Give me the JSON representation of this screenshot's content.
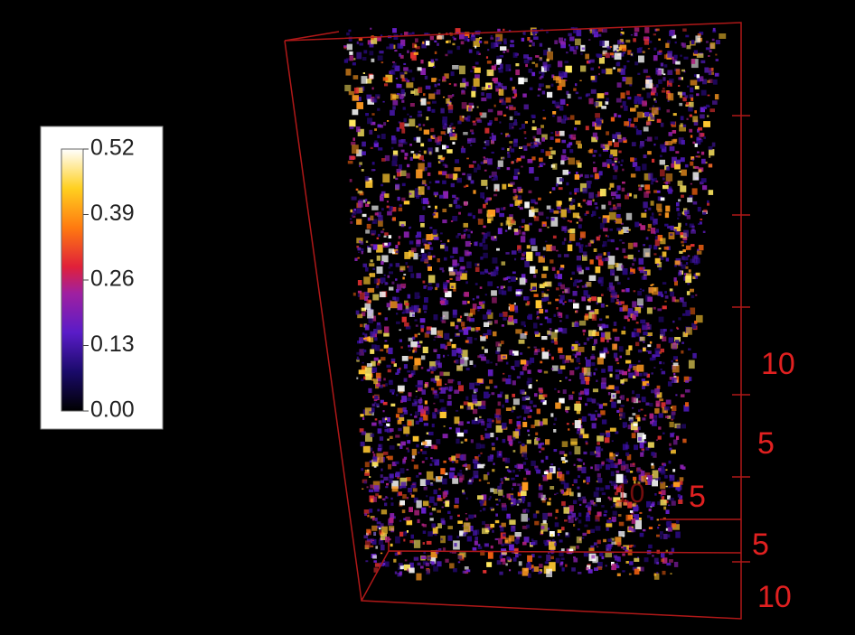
{
  "colorbar": {
    "ticks": [
      "0.52",
      "0.39",
      "0.26",
      "0.13",
      "0.00"
    ]
  },
  "axis_labels": {
    "vertical": [
      "10",
      "5"
    ],
    "depth": [
      "10",
      "5"
    ],
    "bottom": [
      "5",
      "10"
    ]
  }
}
